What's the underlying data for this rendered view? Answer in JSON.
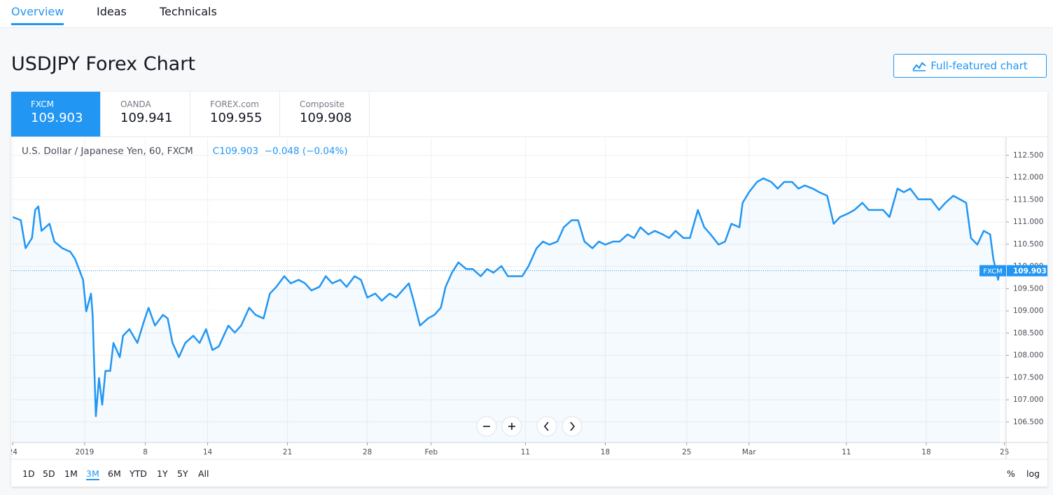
{
  "nav": {
    "tabs": [
      "Overview",
      "Ideas",
      "Technicals"
    ]
  },
  "header": {
    "title": "USDJPY Forex Chart",
    "button": "Full-featured chart"
  },
  "sources": [
    {
      "name": "FXCM",
      "price": 109.903
    },
    {
      "name": "OANDA",
      "price": 109.941
    },
    {
      "name": "FOREX.com",
      "price": 109.955
    },
    {
      "name": "Composite",
      "price": 109.908
    }
  ],
  "legend": {
    "symbol": "U.S. Dollar / Japanese Yen, 60, FXCM",
    "quote": "C109.903  −0.048 (−0.04%)"
  },
  "ranges": [
    "1D",
    "5D",
    "1M",
    "3M",
    "6M",
    "YTD",
    "1Y",
    "5Y",
    "All"
  ],
  "scale_options": [
    "%",
    "log"
  ],
  "chart_data": {
    "type": "line",
    "color": "#2196f3",
    "grid": true,
    "last_price": {
      "name": "FXCM",
      "value": 109.903
    },
    "x": [
      0.0,
      0.5,
      0.8,
      1.2,
      1.4,
      1.6,
      1.8,
      2.3,
      2.6,
      3.1,
      3.6,
      3.9,
      4.4,
      4.6,
      4.9,
      5.0,
      5.2,
      5.4,
      5.6,
      5.8,
      6.1,
      6.3,
      6.7,
      6.9,
      7.3,
      7.8,
      8.2,
      8.5,
      8.9,
      9.4,
      9.7,
      10.0,
      10.4,
      10.8,
      11.3,
      11.7,
      12.1,
      12.5,
      12.9,
      13.5,
      13.9,
      14.3,
      14.8,
      15.2,
      15.7,
      16.1,
      16.5,
      17.0,
      17.4,
      17.9,
      18.3,
      18.7,
      19.2,
      19.6,
      20.0,
      20.5,
      20.9,
      21.4,
      21.8,
      22.2,
      22.7,
      23.1,
      23.6,
      24.0,
      24.4,
      24.8,
      25.1,
      25.5,
      26.0,
      26.4,
      26.8,
      27.1,
      27.5,
      27.9,
      28.4,
      28.8,
      29.3,
      29.7,
      30.1,
      30.6,
      31.0,
      31.4,
      31.9,
      32.3,
      32.8,
      33.2,
      33.6,
      34.1,
      34.5,
      35.0,
      35.4,
      35.8,
      36.3,
      36.7,
      37.1,
      37.6,
      38.0,
      38.5,
      38.9,
      39.3,
      39.8,
      40.2,
      40.7,
      41.1,
      41.5,
      42.0,
      42.4,
      42.9,
      43.3,
      43.7,
      44.2,
      44.6,
      45.0,
      45.5,
      45.7,
      46.1,
      46.6,
      47.0,
      47.5,
      47.9,
      48.3,
      48.8,
      49.2,
      49.6,
      50.1,
      50.5,
      51.0,
      51.4,
      51.8,
      52.3,
      52.7,
      53.2,
      53.6,
      54.0,
      54.5,
      54.9,
      55.4,
      55.8,
      56.2,
      56.7,
      57.1,
      57.5,
      58.0,
      58.4,
      58.9,
      59.3,
      59.7,
      60.0,
      60.4,
      60.8,
      61.2,
      61.4,
      61.7,
      61.8
    ],
    "values": [
      111.11,
      111.04,
      110.41,
      110.64,
      111.27,
      111.35,
      110.8,
      110.96,
      110.56,
      110.41,
      110.33,
      110.17,
      109.7,
      108.99,
      109.39,
      108.91,
      106.63,
      107.49,
      106.89,
      107.65,
      107.65,
      108.28,
      107.96,
      108.44,
      108.59,
      108.28,
      108.75,
      109.07,
      108.67,
      108.91,
      108.83,
      108.28,
      107.96,
      108.28,
      108.44,
      108.28,
      108.59,
      108.12,
      108.2,
      108.67,
      108.51,
      108.67,
      109.07,
      108.91,
      108.83,
      109.39,
      109.54,
      109.78,
      109.62,
      109.7,
      109.62,
      109.46,
      109.54,
      109.78,
      109.62,
      109.7,
      109.54,
      109.78,
      109.7,
      109.3,
      109.39,
      109.23,
      109.39,
      109.3,
      109.46,
      109.62,
      109.23,
      108.67,
      108.83,
      108.91,
      109.07,
      109.54,
      109.86,
      110.09,
      109.94,
      109.94,
      109.78,
      109.94,
      109.86,
      110.01,
      109.78,
      109.78,
      109.78,
      110.01,
      110.41,
      110.56,
      110.49,
      110.56,
      110.88,
      111.04,
      111.04,
      110.56,
      110.41,
      110.56,
      110.49,
      110.56,
      110.56,
      110.72,
      110.64,
      110.88,
      110.72,
      110.8,
      110.72,
      110.64,
      110.8,
      110.64,
      110.64,
      111.27,
      110.88,
      110.72,
      110.49,
      110.56,
      110.96,
      110.88,
      111.43,
      111.67,
      111.9,
      111.98,
      111.9,
      111.75,
      111.9,
      111.9,
      111.75,
      111.82,
      111.75,
      111.67,
      111.59,
      110.96,
      111.11,
      111.19,
      111.27,
      111.43,
      111.27,
      111.27,
      111.27,
      111.11,
      111.75,
      111.67,
      111.75,
      111.51,
      111.51,
      111.51,
      111.27,
      111.43,
      111.59,
      111.51,
      111.43,
      110.64,
      110.49,
      110.8,
      110.72,
      110.17,
      109.7,
      109.9
    ],
    "xlim": [
      -0.1,
      62.2
    ],
    "xticks": [
      {
        "value": 0,
        "label": "24"
      },
      {
        "value": 4.5,
        "label": "2019"
      },
      {
        "value": 8.3,
        "label": "8"
      },
      {
        "value": 12.2,
        "label": "14"
      },
      {
        "value": 17.2,
        "label": "21"
      },
      {
        "value": 22.2,
        "label": "28"
      },
      {
        "value": 26.2,
        "label": "Feb"
      },
      {
        "value": 32.1,
        "label": "11"
      },
      {
        "value": 37.1,
        "label": "18"
      },
      {
        "value": 42.2,
        "label": "25"
      },
      {
        "value": 46.1,
        "label": "Mar"
      },
      {
        "value": 52.2,
        "label": "11"
      },
      {
        "value": 57.2,
        "label": "18"
      },
      {
        "value": 62.1,
        "label": "25"
      }
    ],
    "ylim": [
      106.04,
      112.89
    ],
    "yticks": [
      {
        "value": 106.5,
        "label": "106.500"
      },
      {
        "value": 107,
        "label": "107.000"
      },
      {
        "value": 107.5,
        "label": "107.500"
      },
      {
        "value": 108,
        "label": "108.000"
      },
      {
        "value": 108.5,
        "label": "108.500"
      },
      {
        "value": 109,
        "label": "109.000"
      },
      {
        "value": 109.5,
        "label": "109.500"
      },
      {
        "value": 110,
        "label": "110.000"
      },
      {
        "value": 110.5,
        "label": "110.500"
      },
      {
        "value": 111,
        "label": "111.000"
      },
      {
        "value": 111.5,
        "label": "111.500"
      },
      {
        "value": 112,
        "label": "112.000"
      },
      {
        "value": 112.5,
        "label": "112.500"
      }
    ]
  }
}
